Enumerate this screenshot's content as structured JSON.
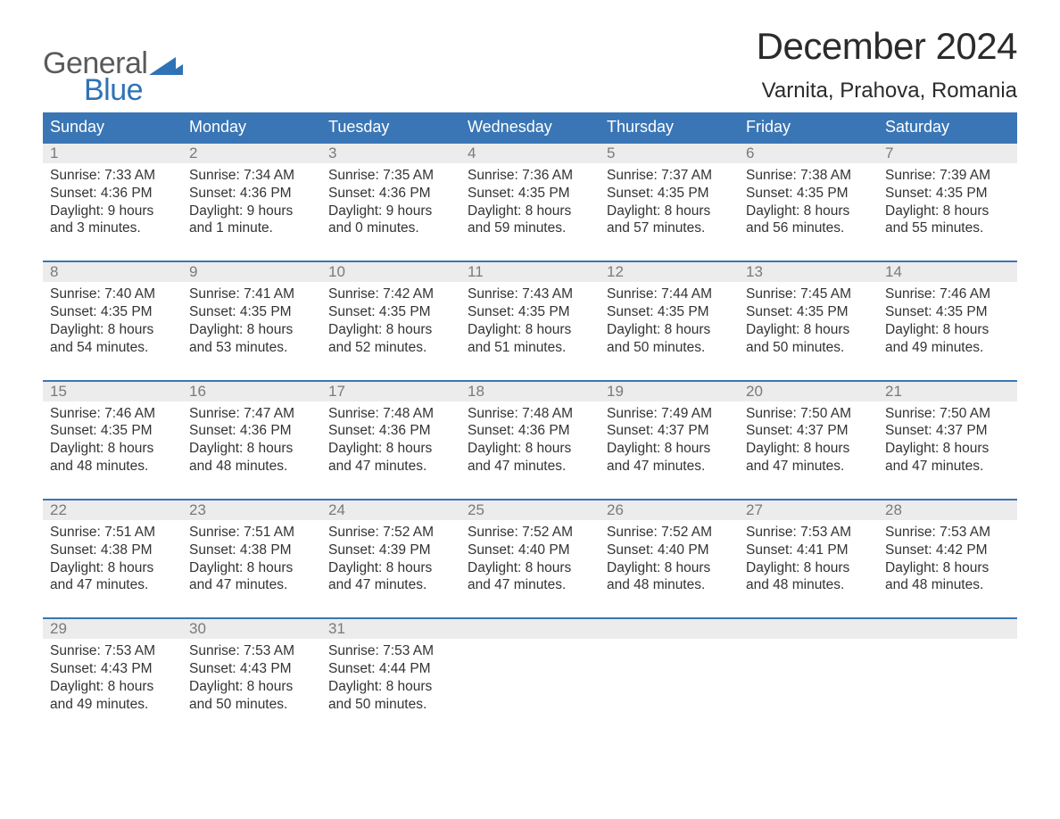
{
  "logo": {
    "text_gray": "General",
    "text_blue": "Blue"
  },
  "title": "December 2024",
  "subtitle": "Varnita, Prahova, Romania",
  "header_bg": "#3a76b5",
  "header_text_color": "#ffffff",
  "daynum_bg": "#ececec",
  "daynum_color": "#7a7a7a",
  "body_text_color": "#333333",
  "week_border_color": "#3a76b5",
  "font_family": "Arial",
  "title_fontsize": 42,
  "subtitle_fontsize": 24,
  "weekday_fontsize": 18,
  "body_fontsize": 15.5,
  "weekdays": [
    "Sunday",
    "Monday",
    "Tuesday",
    "Wednesday",
    "Thursday",
    "Friday",
    "Saturday"
  ],
  "weeks": [
    [
      {
        "n": "1",
        "sunrise": "Sunrise: 7:33 AM",
        "sunset": "Sunset: 4:36 PM",
        "d1": "Daylight: 9 hours",
        "d2": "and 3 minutes."
      },
      {
        "n": "2",
        "sunrise": "Sunrise: 7:34 AM",
        "sunset": "Sunset: 4:36 PM",
        "d1": "Daylight: 9 hours",
        "d2": "and 1 minute."
      },
      {
        "n": "3",
        "sunrise": "Sunrise: 7:35 AM",
        "sunset": "Sunset: 4:36 PM",
        "d1": "Daylight: 9 hours",
        "d2": "and 0 minutes."
      },
      {
        "n": "4",
        "sunrise": "Sunrise: 7:36 AM",
        "sunset": "Sunset: 4:35 PM",
        "d1": "Daylight: 8 hours",
        "d2": "and 59 minutes."
      },
      {
        "n": "5",
        "sunrise": "Sunrise: 7:37 AM",
        "sunset": "Sunset: 4:35 PM",
        "d1": "Daylight: 8 hours",
        "d2": "and 57 minutes."
      },
      {
        "n": "6",
        "sunrise": "Sunrise: 7:38 AM",
        "sunset": "Sunset: 4:35 PM",
        "d1": "Daylight: 8 hours",
        "d2": "and 56 minutes."
      },
      {
        "n": "7",
        "sunrise": "Sunrise: 7:39 AM",
        "sunset": "Sunset: 4:35 PM",
        "d1": "Daylight: 8 hours",
        "d2": "and 55 minutes."
      }
    ],
    [
      {
        "n": "8",
        "sunrise": "Sunrise: 7:40 AM",
        "sunset": "Sunset: 4:35 PM",
        "d1": "Daylight: 8 hours",
        "d2": "and 54 minutes."
      },
      {
        "n": "9",
        "sunrise": "Sunrise: 7:41 AM",
        "sunset": "Sunset: 4:35 PM",
        "d1": "Daylight: 8 hours",
        "d2": "and 53 minutes."
      },
      {
        "n": "10",
        "sunrise": "Sunrise: 7:42 AM",
        "sunset": "Sunset: 4:35 PM",
        "d1": "Daylight: 8 hours",
        "d2": "and 52 minutes."
      },
      {
        "n": "11",
        "sunrise": "Sunrise: 7:43 AM",
        "sunset": "Sunset: 4:35 PM",
        "d1": "Daylight: 8 hours",
        "d2": "and 51 minutes."
      },
      {
        "n": "12",
        "sunrise": "Sunrise: 7:44 AM",
        "sunset": "Sunset: 4:35 PM",
        "d1": "Daylight: 8 hours",
        "d2": "and 50 minutes."
      },
      {
        "n": "13",
        "sunrise": "Sunrise: 7:45 AM",
        "sunset": "Sunset: 4:35 PM",
        "d1": "Daylight: 8 hours",
        "d2": "and 50 minutes."
      },
      {
        "n": "14",
        "sunrise": "Sunrise: 7:46 AM",
        "sunset": "Sunset: 4:35 PM",
        "d1": "Daylight: 8 hours",
        "d2": "and 49 minutes."
      }
    ],
    [
      {
        "n": "15",
        "sunrise": "Sunrise: 7:46 AM",
        "sunset": "Sunset: 4:35 PM",
        "d1": "Daylight: 8 hours",
        "d2": "and 48 minutes."
      },
      {
        "n": "16",
        "sunrise": "Sunrise: 7:47 AM",
        "sunset": "Sunset: 4:36 PM",
        "d1": "Daylight: 8 hours",
        "d2": "and 48 minutes."
      },
      {
        "n": "17",
        "sunrise": "Sunrise: 7:48 AM",
        "sunset": "Sunset: 4:36 PM",
        "d1": "Daylight: 8 hours",
        "d2": "and 47 minutes."
      },
      {
        "n": "18",
        "sunrise": "Sunrise: 7:48 AM",
        "sunset": "Sunset: 4:36 PM",
        "d1": "Daylight: 8 hours",
        "d2": "and 47 minutes."
      },
      {
        "n": "19",
        "sunrise": "Sunrise: 7:49 AM",
        "sunset": "Sunset: 4:37 PM",
        "d1": "Daylight: 8 hours",
        "d2": "and 47 minutes."
      },
      {
        "n": "20",
        "sunrise": "Sunrise: 7:50 AM",
        "sunset": "Sunset: 4:37 PM",
        "d1": "Daylight: 8 hours",
        "d2": "and 47 minutes."
      },
      {
        "n": "21",
        "sunrise": "Sunrise: 7:50 AM",
        "sunset": "Sunset: 4:37 PM",
        "d1": "Daylight: 8 hours",
        "d2": "and 47 minutes."
      }
    ],
    [
      {
        "n": "22",
        "sunrise": "Sunrise: 7:51 AM",
        "sunset": "Sunset: 4:38 PM",
        "d1": "Daylight: 8 hours",
        "d2": "and 47 minutes."
      },
      {
        "n": "23",
        "sunrise": "Sunrise: 7:51 AM",
        "sunset": "Sunset: 4:38 PM",
        "d1": "Daylight: 8 hours",
        "d2": "and 47 minutes."
      },
      {
        "n": "24",
        "sunrise": "Sunrise: 7:52 AM",
        "sunset": "Sunset: 4:39 PM",
        "d1": "Daylight: 8 hours",
        "d2": "and 47 minutes."
      },
      {
        "n": "25",
        "sunrise": "Sunrise: 7:52 AM",
        "sunset": "Sunset: 4:40 PM",
        "d1": "Daylight: 8 hours",
        "d2": "and 47 minutes."
      },
      {
        "n": "26",
        "sunrise": "Sunrise: 7:52 AM",
        "sunset": "Sunset: 4:40 PM",
        "d1": "Daylight: 8 hours",
        "d2": "and 48 minutes."
      },
      {
        "n": "27",
        "sunrise": "Sunrise: 7:53 AM",
        "sunset": "Sunset: 4:41 PM",
        "d1": "Daylight: 8 hours",
        "d2": "and 48 minutes."
      },
      {
        "n": "28",
        "sunrise": "Sunrise: 7:53 AM",
        "sunset": "Sunset: 4:42 PM",
        "d1": "Daylight: 8 hours",
        "d2": "and 48 minutes."
      }
    ],
    [
      {
        "n": "29",
        "sunrise": "Sunrise: 7:53 AM",
        "sunset": "Sunset: 4:43 PM",
        "d1": "Daylight: 8 hours",
        "d2": "and 49 minutes."
      },
      {
        "n": "30",
        "sunrise": "Sunrise: 7:53 AM",
        "sunset": "Sunset: 4:43 PM",
        "d1": "Daylight: 8 hours",
        "d2": "and 50 minutes."
      },
      {
        "n": "31",
        "sunrise": "Sunrise: 7:53 AM",
        "sunset": "Sunset: 4:44 PM",
        "d1": "Daylight: 8 hours",
        "d2": "and 50 minutes."
      },
      null,
      null,
      null,
      null
    ]
  ]
}
